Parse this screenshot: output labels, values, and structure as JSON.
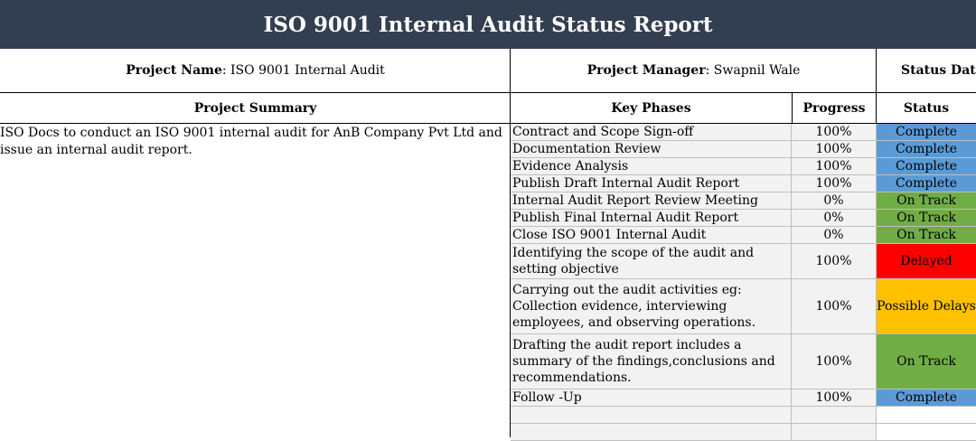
{
  "title": "ISO 9001 Internal Audit Status Report",
  "info": {
    "project_name_label": "Project Name",
    "project_name_value": ": ISO 9001 Internal Audit",
    "project_manager_label": "Project Manager",
    "project_manager_value": " : Swapnil Wale",
    "status_date_label": "Status Date"
  },
  "headers": {
    "summary": "Project Summary",
    "phases": "Key Phases",
    "progress": "Progress",
    "status": "Status"
  },
  "summary_text": "ISO Docs to conduct an ISO 9001 internal audit for AnB Company Pvt Ltd and issue an internal audit report.",
  "status_colors": {
    "complete": "#5b9bd5",
    "on_track": "#70ad47",
    "delayed": "#ff0000",
    "possible_delays": "#ffc000",
    "title_bar": "#333f50"
  },
  "rows": [
    {
      "phase": "Contract and Scope Sign-off",
      "progress": "100%",
      "status": "Complete",
      "kind": "complete"
    },
    {
      "phase": "Documentation Review",
      "progress": "100%",
      "status": "Complete",
      "kind": "complete"
    },
    {
      "phase": "Evidence Analysis",
      "progress": "100%",
      "status": "Complete",
      "kind": "complete"
    },
    {
      "phase": "Publish Draft Internal Audit Report",
      "progress": "100%",
      "status": "Complete",
      "kind": "complete"
    },
    {
      "phase": "Internal Audit Report Review Meeting",
      "progress": "0%",
      "status": "On Track",
      "kind": "ontrack"
    },
    {
      "phase": "Publish Final Internal Audit Report",
      "progress": "0%",
      "status": "On Track",
      "kind": "ontrack"
    },
    {
      "phase": "Close ISO 9001 Internal Audit",
      "progress": "0%",
      "status": "On Track",
      "kind": "ontrack"
    },
    {
      "phase": "Identifying the scope of the audit and setting objective",
      "progress": "100%",
      "status": "Delayed",
      "kind": "delayed"
    },
    {
      "phase": "Carrying out the audit activities eg: Collection evidence, interviewing employees, and observing operations.",
      "progress": "100%",
      "status": "Possible Delays",
      "kind": "possible"
    },
    {
      "phase": "Drafting the audit report includes a summary of the findings,conclusions and recommendations.",
      "progress": "100%",
      "status": "On Track",
      "kind": "ontrack"
    },
    {
      "phase": "Follow -Up",
      "progress": "100%",
      "status": "Complete",
      "kind": "complete"
    },
    {
      "phase": "",
      "progress": "",
      "status": "",
      "kind": "empty"
    },
    {
      "phase": "",
      "progress": "",
      "status": "",
      "kind": "empty"
    }
  ]
}
